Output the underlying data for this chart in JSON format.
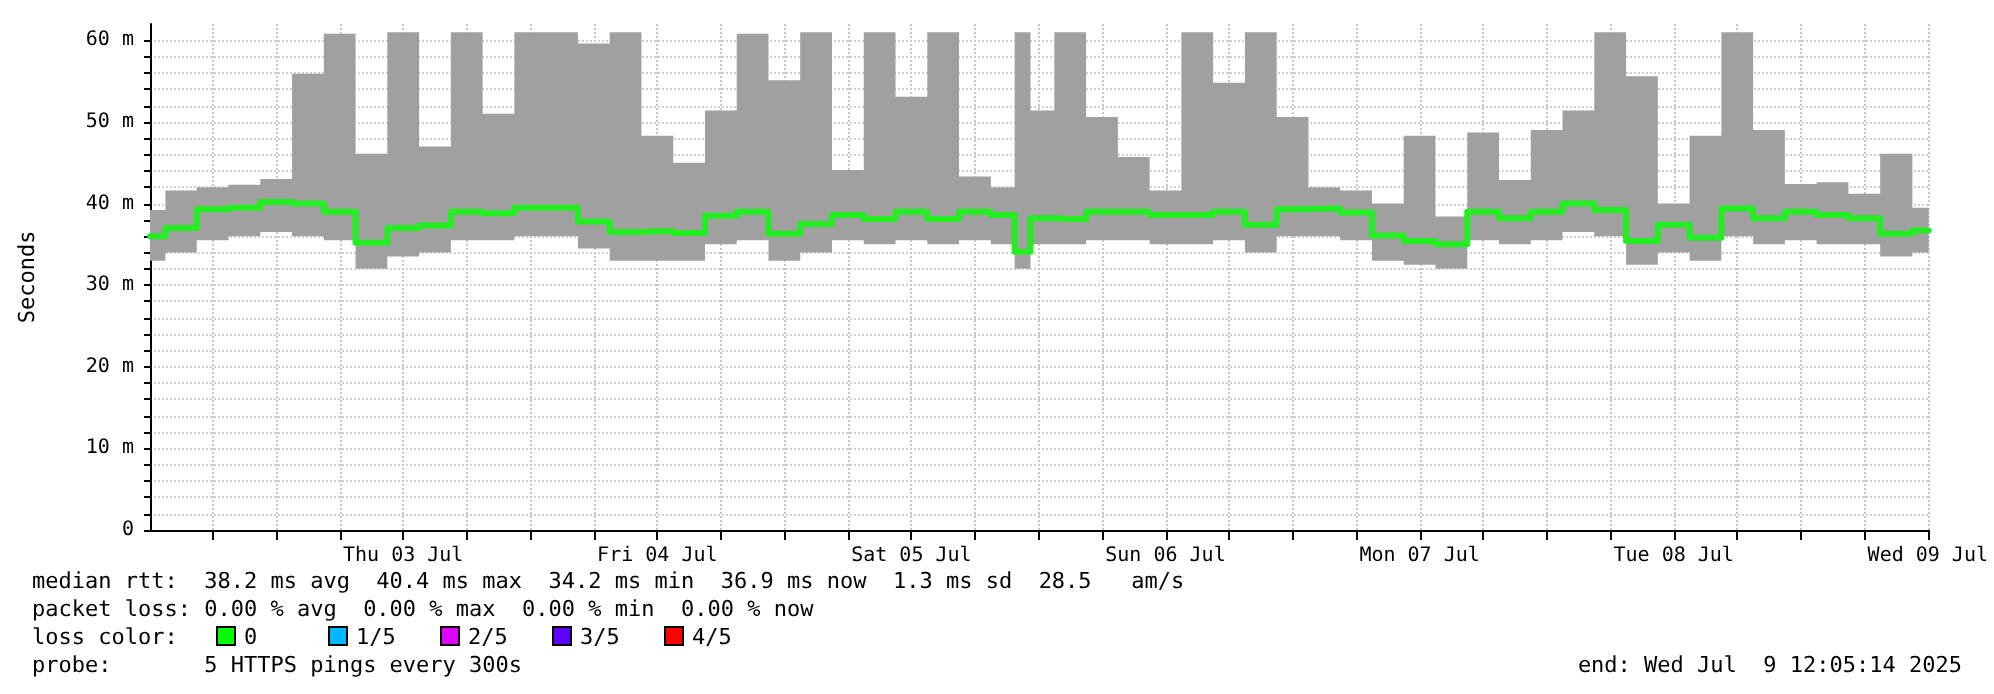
{
  "chart_data": {
    "type": "step",
    "ylabel": "Seconds",
    "x": [
      "2025-07-02T12:05",
      "2025-07-02T15:00",
      "2025-07-02T18:00",
      "2025-07-02T21:00",
      "2025-07-03T00:00",
      "2025-07-03T03:00",
      "2025-07-03T06:00",
      "2025-07-03T09:00",
      "2025-07-03T12:00",
      "2025-07-03T15:00",
      "2025-07-03T18:00",
      "2025-07-03T21:00",
      "2025-07-04T00:00",
      "2025-07-04T03:00",
      "2025-07-04T06:00",
      "2025-07-04T09:00",
      "2025-07-04T12:00",
      "2025-07-04T15:00",
      "2025-07-04T18:00",
      "2025-07-04T21:00",
      "2025-07-05T00:00",
      "2025-07-05T03:00",
      "2025-07-05T06:00",
      "2025-07-05T09:00",
      "2025-07-05T12:00",
      "2025-07-05T15:00",
      "2025-07-05T18:00",
      "2025-07-05T21:00",
      "2025-07-05T22:30",
      "2025-07-06T00:00",
      "2025-07-06T03:00",
      "2025-07-06T06:00",
      "2025-07-06T09:00",
      "2025-07-06T12:00",
      "2025-07-06T15:00",
      "2025-07-06T18:00",
      "2025-07-06T21:00",
      "2025-07-07T00:00",
      "2025-07-07T03:00",
      "2025-07-07T06:00",
      "2025-07-07T09:00",
      "2025-07-07T12:00",
      "2025-07-07T15:00",
      "2025-07-07T18:00",
      "2025-07-07T21:00",
      "2025-07-08T00:00",
      "2025-07-08T03:00",
      "2025-07-08T06:00",
      "2025-07-08T09:00",
      "2025-07-08T12:00",
      "2025-07-08T15:00",
      "2025-07-08T18:00",
      "2025-07-08T21:00",
      "2025-07-09T00:00",
      "2025-07-09T03:00",
      "2025-07-09T06:00",
      "2025-07-09T09:00",
      "2025-07-09T12:05"
    ],
    "series": [
      {
        "color": "#22ee22",
        "values": [
          36.0,
          37.0,
          39.3,
          39.5,
          40.2,
          40.0,
          39.0,
          35.2,
          37.0,
          37.3,
          39.0,
          38.8,
          39.5,
          39.5,
          37.8,
          36.5,
          36.6,
          36.4,
          38.5,
          39.0,
          36.3,
          37.5,
          38.6,
          38.1,
          39.0,
          38.1,
          39.0,
          38.6,
          34.1,
          38.2,
          38.1,
          39.0,
          39.0,
          38.6,
          38.6,
          39.0,
          37.4,
          39.3,
          39.4,
          38.9,
          36.1,
          35.4,
          35.0,
          39.0,
          38.2,
          39.0,
          40.0,
          39.2,
          35.4,
          37.4,
          35.8,
          39.4,
          38.2,
          39.0,
          38.6,
          38.2,
          36.3,
          36.7
        ],
        "lower": [
          33,
          34,
          35.5,
          36,
          36.5,
          36,
          35.5,
          32,
          33.5,
          34,
          35.5,
          35.5,
          36,
          36,
          34.5,
          33,
          33,
          33,
          35,
          35.5,
          33,
          34,
          35.5,
          35,
          35.5,
          35,
          35.5,
          35,
          32,
          35,
          35,
          35.5,
          35.5,
          35,
          35,
          35.5,
          34,
          36,
          36,
          35.5,
          33,
          32.5,
          32,
          35.5,
          35,
          35.5,
          36.5,
          36,
          32.5,
          34,
          33,
          36,
          35,
          35.5,
          35,
          35,
          33.5,
          34
        ],
        "upper": [
          39.2,
          41.6,
          42.0,
          42.3,
          43.0,
          55.9,
          60.8,
          46.1,
          61,
          47,
          61,
          51,
          61,
          61,
          59.6,
          61,
          48.3,
          45,
          51.4,
          60.8,
          55.1,
          61,
          44.1,
          61,
          53.1,
          61,
          43.3,
          42,
          61,
          51.4,
          61,
          50.6,
          45.7,
          41.6,
          61,
          54.8,
          61,
          50.6,
          42,
          41.6,
          40,
          48.3,
          38.4,
          48.7,
          42.9,
          49,
          51.4,
          61,
          55.6,
          40,
          48.3,
          61,
          49,
          42.4,
          42.6,
          41.2,
          46.1,
          39.5
        ]
      }
    ],
    "xlim": [
      "2025-07-02T12:05",
      "2025-07-09T12:05"
    ],
    "xticks": [
      {
        "value": "2025-07-02T18:00",
        "label": null
      },
      {
        "value": "2025-07-03T00:00",
        "label": null
      },
      {
        "value": "2025-07-03T06:00",
        "label": null
      },
      {
        "value": "2025-07-03T12:00",
        "label": "Thu 03 Jul"
      },
      {
        "value": "2025-07-03T18:00",
        "label": null
      },
      {
        "value": "2025-07-04T00:00",
        "label": null
      },
      {
        "value": "2025-07-04T06:00",
        "label": null
      },
      {
        "value": "2025-07-04T12:00",
        "label": "Fri 04 Jul"
      },
      {
        "value": "2025-07-04T18:00",
        "label": null
      },
      {
        "value": "2025-07-05T00:00",
        "label": null
      },
      {
        "value": "2025-07-05T06:00",
        "label": null
      },
      {
        "value": "2025-07-05T12:00",
        "label": "Sat 05 Jul"
      },
      {
        "value": "2025-07-05T18:00",
        "label": null
      },
      {
        "value": "2025-07-06T00:00",
        "label": null
      },
      {
        "value": "2025-07-06T06:00",
        "label": null
      },
      {
        "value": "2025-07-06T12:00",
        "label": "Sun 06 Jul"
      },
      {
        "value": "2025-07-06T18:00",
        "label": null
      },
      {
        "value": "2025-07-07T00:00",
        "label": null
      },
      {
        "value": "2025-07-07T06:00",
        "label": null
      },
      {
        "value": "2025-07-07T12:00",
        "label": "Mon 07 Jul"
      },
      {
        "value": "2025-07-07T18:00",
        "label": null
      },
      {
        "value": "2025-07-08T00:00",
        "label": null
      },
      {
        "value": "2025-07-08T06:00",
        "label": null
      },
      {
        "value": "2025-07-08T12:00",
        "label": "Tue 08 Jul"
      },
      {
        "value": "2025-07-08T18:00",
        "label": null
      },
      {
        "value": "2025-07-09T00:00",
        "label": null
      },
      {
        "value": "2025-07-09T06:00",
        "label": null
      },
      {
        "value": "2025-07-09T12:00",
        "label": "Wed 09 Jul"
      }
    ],
    "ylim": [
      0,
      62
    ],
    "yticks": [
      0,
      {
        "value": 2,
        "label": null
      },
      {
        "value": 4,
        "label": null
      },
      {
        "value": 6,
        "label": null
      },
      {
        "value": 8,
        "label": null
      },
      {
        "value": 10,
        "label": "10 m"
      },
      {
        "value": 12,
        "label": null
      },
      {
        "value": 14,
        "label": null
      },
      {
        "value": 16,
        "label": null
      },
      {
        "value": 18,
        "label": null
      },
      {
        "value": 20,
        "label": "20 m"
      },
      {
        "value": 22,
        "label": null
      },
      {
        "value": 24,
        "label": null
      },
      {
        "value": 26,
        "label": null
      },
      {
        "value": 28,
        "label": null
      },
      {
        "value": 30,
        "label": "30 m"
      },
      {
        "value": 32,
        "label": null
      },
      {
        "value": 34,
        "label": null
      },
      {
        "value": 36,
        "label": null
      },
      {
        "value": 38,
        "label": null
      },
      {
        "value": 40,
        "label": "40 m"
      },
      {
        "value": 42,
        "label": null
      },
      {
        "value": 44,
        "label": null
      },
      {
        "value": 46,
        "label": null
      },
      {
        "value": 48,
        "label": null
      },
      {
        "value": 50,
        "label": "50 m"
      },
      {
        "value": 52,
        "label": null
      },
      {
        "value": 54,
        "label": null
      },
      {
        "value": 56,
        "label": null
      },
      {
        "value": 58,
        "label": null
      },
      {
        "value": 60,
        "label": "60 m"
      }
    ],
    "grid": true,
    "marker": "none",
    "line_style": "solid",
    "annotations": [
      "median rtt:  38.2 ms avg  40.4 ms max  34.2 ms min  36.9 ms now  1.3 ms sd  28.5   am/s",
      "packet loss: 0.00 % avg  0.00 % max  0.00 % min  0.00 % now",
      "loss color:",
      "0",
      "1/5",
      "2/5",
      "3/5",
      "4/5",
      "probe:       5 HTTPS pings every 300s",
      "end: Wed Jul  9 12:05:14 2025"
    ]
  }
}
